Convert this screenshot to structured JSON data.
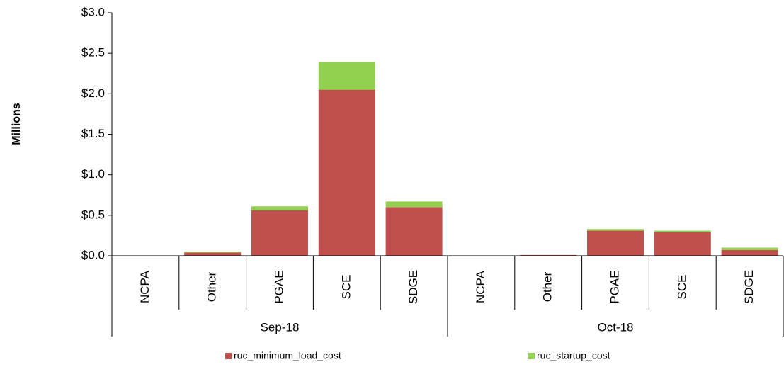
{
  "chart_data": {
    "type": "stacked_bar",
    "y_label": "Millions",
    "category_groups": [
      {
        "name": "Sep-18",
        "categories": [
          "NCPA",
          "Other",
          "PGAE",
          "SCE",
          "SDGE"
        ]
      },
      {
        "name": "Oct-18",
        "categories": [
          "NCPA",
          "Other",
          "PGAE",
          "SCE",
          "SDGE"
        ]
      }
    ],
    "series": [
      {
        "name": "ruc_minimum_load_cost",
        "color": "#c0504d",
        "values": [
          0,
          0.04,
          0.56,
          2.05,
          0.6,
          0,
          0.01,
          0.31,
          0.29,
          0.07
        ]
      },
      {
        "name": "ruc_startup_cost",
        "color": "#92d050",
        "values": [
          0,
          0.01,
          0.05,
          0.34,
          0.07,
          0,
          0,
          0.02,
          0.02,
          0.03
        ]
      }
    ],
    "ylim": [
      0,
      3
    ],
    "yticks": [
      {
        "value": 0,
        "label": "$0.0"
      },
      {
        "value": 0.5,
        "label": "$0.5"
      },
      {
        "value": 1,
        "label": "$1.0"
      },
      {
        "value": 1.5,
        "label": "$1.5"
      },
      {
        "value": 2,
        "label": "$2.0"
      },
      {
        "value": 2.5,
        "label": "$2.5"
      },
      {
        "value": 3,
        "label": "$3.0"
      }
    ],
    "legend": "bottom"
  }
}
